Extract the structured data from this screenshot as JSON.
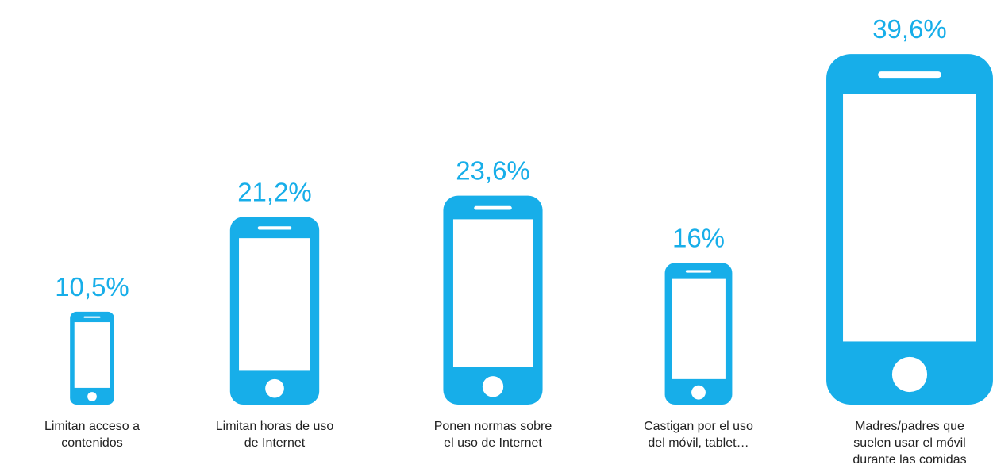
{
  "chart_data": {
    "type": "pictogram",
    "categories": [
      "Limitan acceso a contenidos",
      "Limitan horas de uso de Internet",
      "Ponen normas sobre el uso de Internet",
      "Castigan por el uso del móvil, tablet…",
      "Madres/padres que suelen usar el móvil durante las comidas"
    ],
    "values": [
      10.5,
      21.2,
      23.6,
      16,
      39.6
    ],
    "value_labels": [
      "10,5%",
      "21,2%",
      "23,6%",
      "16%",
      "39,6%"
    ],
    "color": "#17aee9"
  }
}
